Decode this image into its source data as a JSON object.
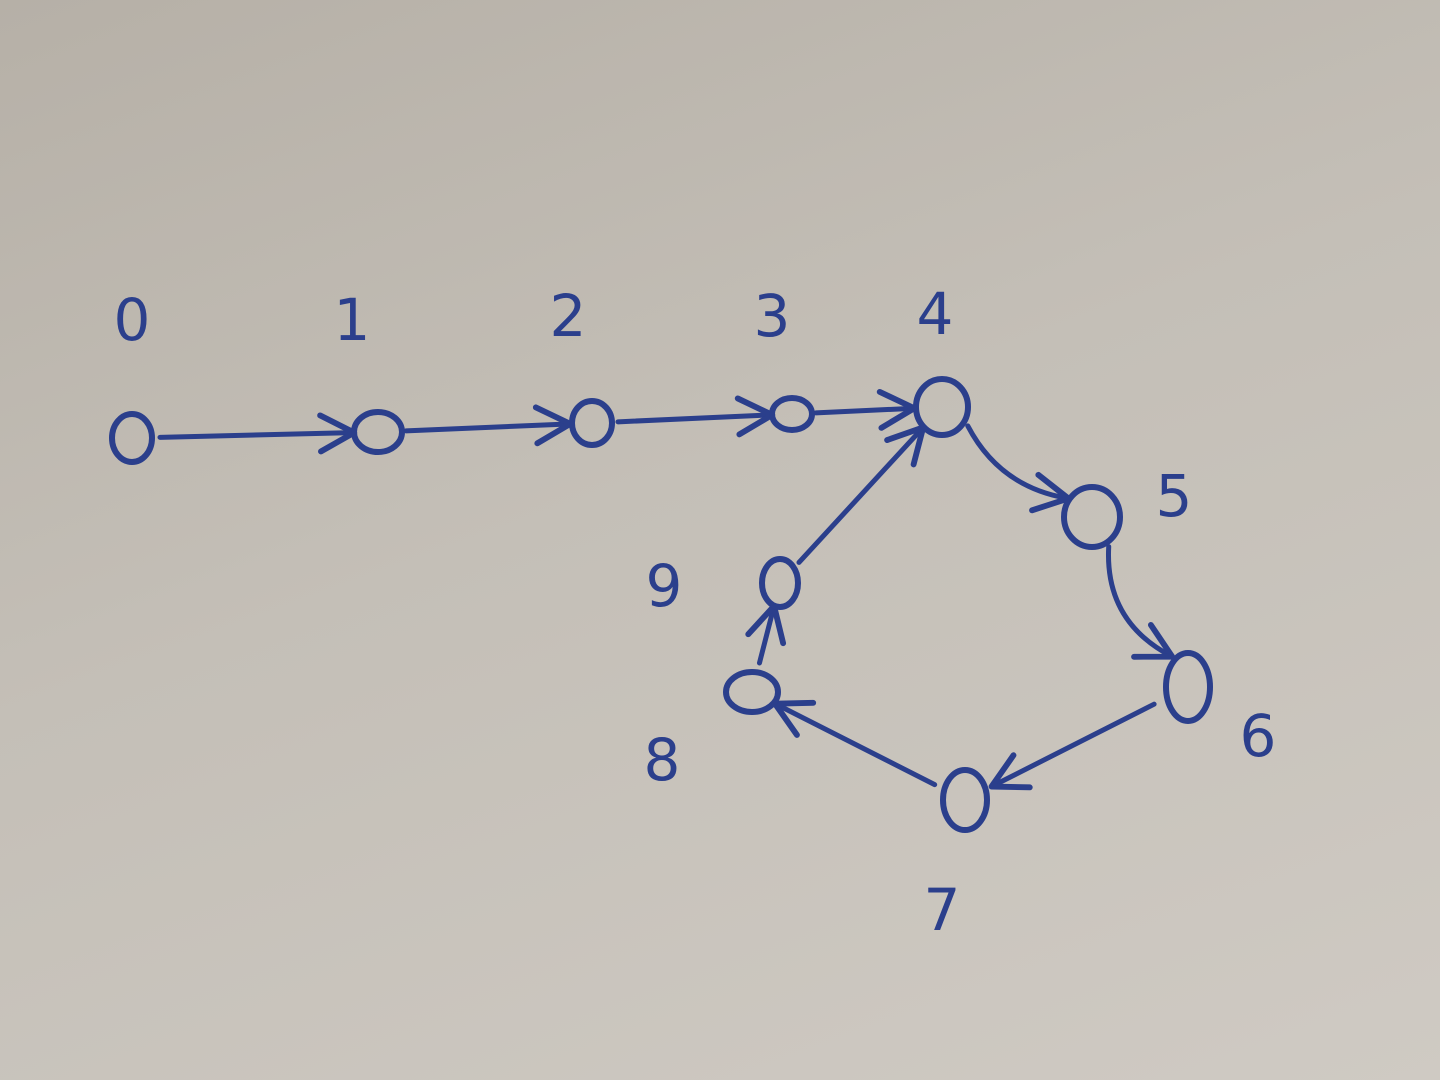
{
  "diagram": {
    "nodes": [
      {
        "id": "0",
        "label": "0"
      },
      {
        "id": "1",
        "label": "1"
      },
      {
        "id": "2",
        "label": "2"
      },
      {
        "id": "3",
        "label": "3"
      },
      {
        "id": "4",
        "label": "4"
      },
      {
        "id": "5",
        "label": "5"
      },
      {
        "id": "6",
        "label": "6"
      },
      {
        "id": "7",
        "label": "7"
      },
      {
        "id": "8",
        "label": "8"
      },
      {
        "id": "9",
        "label": "9"
      }
    ],
    "edges": [
      {
        "from": "0",
        "to": "1"
      },
      {
        "from": "1",
        "to": "2"
      },
      {
        "from": "2",
        "to": "3"
      },
      {
        "from": "3",
        "to": "4"
      },
      {
        "from": "4",
        "to": "5"
      },
      {
        "from": "5",
        "to": "6"
      },
      {
        "from": "6",
        "to": "7"
      },
      {
        "from": "7",
        "to": "8"
      },
      {
        "from": "8",
        "to": "9"
      },
      {
        "from": "9",
        "to": "4"
      }
    ],
    "ink_color": "#2b3f8c",
    "paper_color": "#c4bfb7"
  }
}
